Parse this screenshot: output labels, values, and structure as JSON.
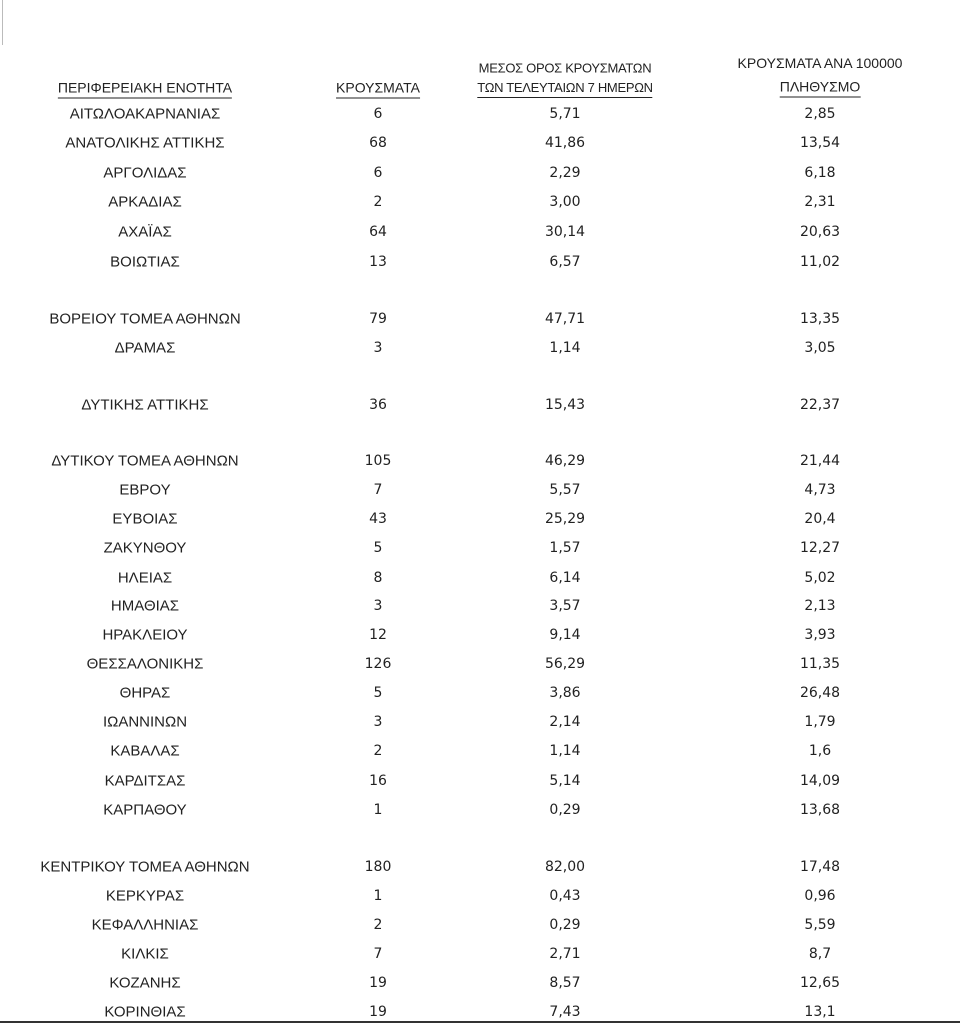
{
  "table": {
    "header": [
      [
        "ΠΕΡΙΦΕΡΕΙΑΚΗ ΕΝΟΤΗΤΑ"
      ],
      [
        "ΚΡΟΥΣΜΑΤΑ"
      ],
      [
        "ΜΕΣΟΣ ΟΡΟΣ ΚΡΟΥΣΜΑΤΩΝ",
        "ΤΩΝ ΤΕΛΕΥΤΑΙΩΝ 7 ΗΜΕΡΩΝ"
      ],
      [
        "ΚΡΟΥΣΜΑΤΑ ΑΝΑ 100000",
        "ΠΛΗΘΥΣΜΟ"
      ]
    ],
    "rows": [
      [
        "ΑΙΤΩΛΟΑΚΑΡΝΑΝΙΑΣ",
        "6",
        "5,71",
        "2,85"
      ],
      [
        "ΑΝΑΤΟΛΙΚΗΣ ΑΤΤΙΚΗΣ",
        "68",
        "41,86",
        "13,54"
      ],
      [
        "ΑΡΓΟΛΙΔΑΣ",
        "6",
        "2,29",
        "6,18"
      ],
      [
        "ΑΡΚΑΔΙΑΣ",
        "2",
        "3,00",
        "2,31"
      ],
      [
        "ΑΧΑΪΑΣ",
        "64",
        "30,14",
        "20,63"
      ],
      [
        "ΒΟΙΩΤΙΑΣ",
        "13",
        "6,57",
        "11,02"
      ],
      [
        "ΒΟΡΕΙΟΥ ΤΟΜΕΑ ΑΘΗΝΩΝ",
        "79",
        "47,71",
        "13,35"
      ],
      [
        "ΔΡΑΜΑΣ",
        "3",
        "1,14",
        "3,05"
      ],
      [
        "ΔΥΤΙΚΗΣ ΑΤΤΙΚΗΣ",
        "36",
        "15,43",
        "22,37"
      ],
      [
        "ΔΥΤΙΚΟΥ ΤΟΜΕΑ ΑΘΗΝΩΝ",
        "105",
        "46,29",
        "21,44"
      ],
      [
        "ΕΒΡΟΥ",
        "7",
        "5,57",
        "4,73"
      ],
      [
        "ΕΥΒΟΙΑΣ",
        "43",
        "25,29",
        "20,4"
      ],
      [
        "ΖΑΚΥΝΘΟΥ",
        "5",
        "1,57",
        "12,27"
      ],
      [
        "ΗΛΕΙΑΣ",
        "8",
        "6,14",
        "5,02"
      ],
      [
        "ΗΜΑΘΙΑΣ",
        "3",
        "3,57",
        "2,13"
      ],
      [
        "ΗΡΑΚΛΕΙΟΥ",
        "12",
        "9,14",
        "3,93"
      ],
      [
        "ΘΕΣΣΑΛΟΝΙΚΗΣ",
        "126",
        "56,29",
        "11,35"
      ],
      [
        "ΘΗΡΑΣ",
        "5",
        "3,86",
        "26,48"
      ],
      [
        "ΙΩΑΝΝΙΝΩΝ",
        "3",
        "2,14",
        "1,79"
      ],
      [
        "ΚΑΒΑΛΑΣ",
        "2",
        "1,14",
        "1,6"
      ],
      [
        "ΚΑΡΔΙΤΣΑΣ",
        "16",
        "5,14",
        "14,09"
      ],
      [
        "ΚΑΡΠΑΘΟΥ",
        "1",
        "0,29",
        "13,68"
      ],
      [
        "ΚΕΝΤΡΙΚΟΥ ΤΟΜΕΑ ΑΘΗΝΩΝ",
        "180",
        "82,00",
        "17,48"
      ],
      [
        "ΚΕΡΚΥΡΑΣ",
        "1",
        "0,43",
        "0,96"
      ],
      [
        "ΚΕΦΑΛΛΗΝΙΑΣ",
        "2",
        "0,29",
        "5,59"
      ],
      [
        "ΚΙΛΚΙΣ",
        "7",
        "2,71",
        "8,7"
      ],
      [
        "ΚΟΖΑΝΗΣ",
        "19",
        "8,57",
        "12,65"
      ],
      [
        "ΚΟΡΙΝΘΙΑΣ",
        "19",
        "7,43",
        "13,1"
      ]
    ]
  }
}
